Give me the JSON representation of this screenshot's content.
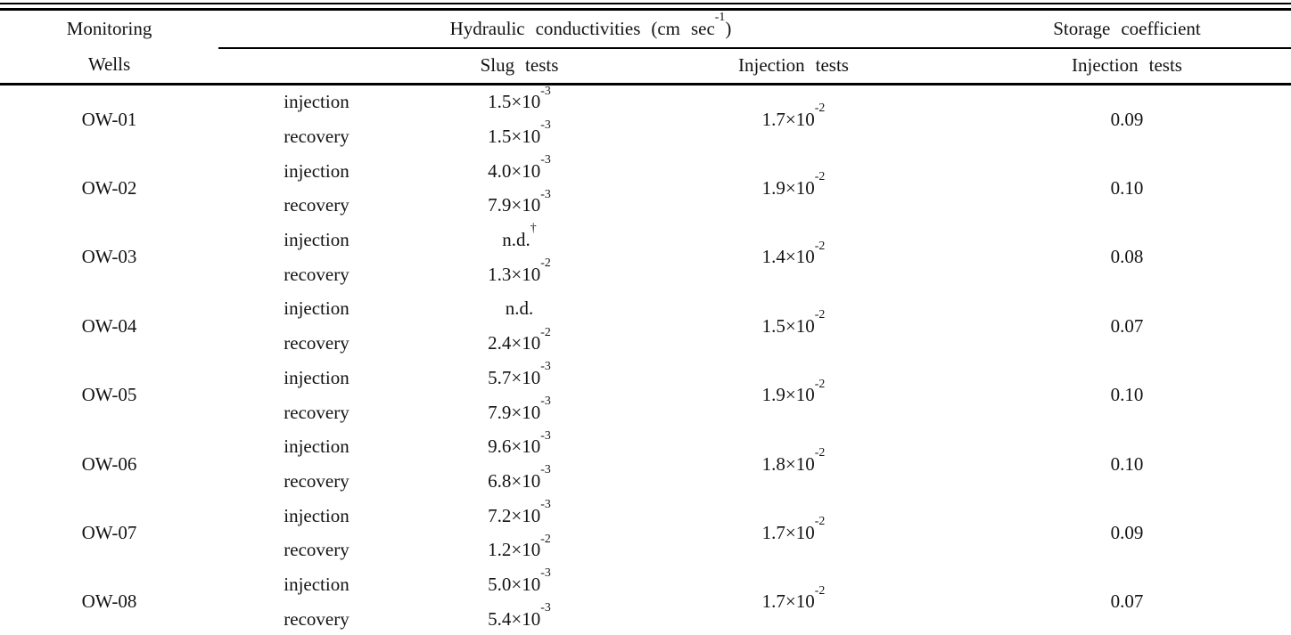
{
  "page": {
    "background_color": "#ffffff",
    "text_color": "#131313",
    "rule_color": "#000000"
  },
  "table": {
    "header": {
      "monitoring_wells": "Monitoring\nWells",
      "hydraulic_group": "Hydraulic conductivities (cm sec^{-1})",
      "storage_group": "Storage coefficient",
      "slug_tests": "Slug tests",
      "injection_tests": "Injection tests",
      "storage_injection_tests": "Injection tests"
    },
    "rows": [
      {
        "well": "OW-01",
        "slug": [
          {
            "type": "injection",
            "value": "1.5×10^{-3}"
          },
          {
            "type": "recovery",
            "value": "1.5×10^{-3}"
          }
        ],
        "injection_test": "1.7×10^{-2}",
        "storage": "0.09"
      },
      {
        "well": "OW-02",
        "slug": [
          {
            "type": "injection",
            "value": "4.0×10^{-3}"
          },
          {
            "type": "recovery",
            "value": "7.9×10^{-3}"
          }
        ],
        "injection_test": "1.9×10^{-2}",
        "storage": "0.10"
      },
      {
        "well": "OW-03",
        "slug": [
          {
            "type": "injection",
            "value": "n.d.^{†}"
          },
          {
            "type": "recovery",
            "value": "1.3×10^{-2}"
          }
        ],
        "injection_test": "1.4×10^{-2}",
        "storage": "0.08"
      },
      {
        "well": "OW-04",
        "slug": [
          {
            "type": "injection",
            "value": "n.d."
          },
          {
            "type": "recovery",
            "value": "2.4×10^{-2}"
          }
        ],
        "injection_test": "1.5×10^{-2}",
        "storage": "0.07"
      },
      {
        "well": "OW-05",
        "slug": [
          {
            "type": "injection",
            "value": "5.7×10^{-3}"
          },
          {
            "type": "recovery",
            "value": "7.9×10^{-3}"
          }
        ],
        "injection_test": "1.9×10^{-2}",
        "storage": "0.10"
      },
      {
        "well": "OW-06",
        "slug": [
          {
            "type": "injection",
            "value": "9.6×10^{-3}"
          },
          {
            "type": "recovery",
            "value": "6.8×10^{-3}"
          }
        ],
        "injection_test": "1.8×10^{-2}",
        "storage": "0.10"
      },
      {
        "well": "OW-07",
        "slug": [
          {
            "type": "injection",
            "value": "7.2×10^{-3}"
          },
          {
            "type": "recovery",
            "value": "1.2×10^{-2}"
          }
        ],
        "injection_test": "1.7×10^{-2}",
        "storage": "0.09"
      },
      {
        "well": "OW-08",
        "slug": [
          {
            "type": "injection",
            "value": "5.0×10^{-3}"
          },
          {
            "type": "recovery",
            "value": "5.4×10^{-3}"
          }
        ],
        "injection_test": "1.7×10^{-2}",
        "storage": "0.07"
      }
    ]
  }
}
